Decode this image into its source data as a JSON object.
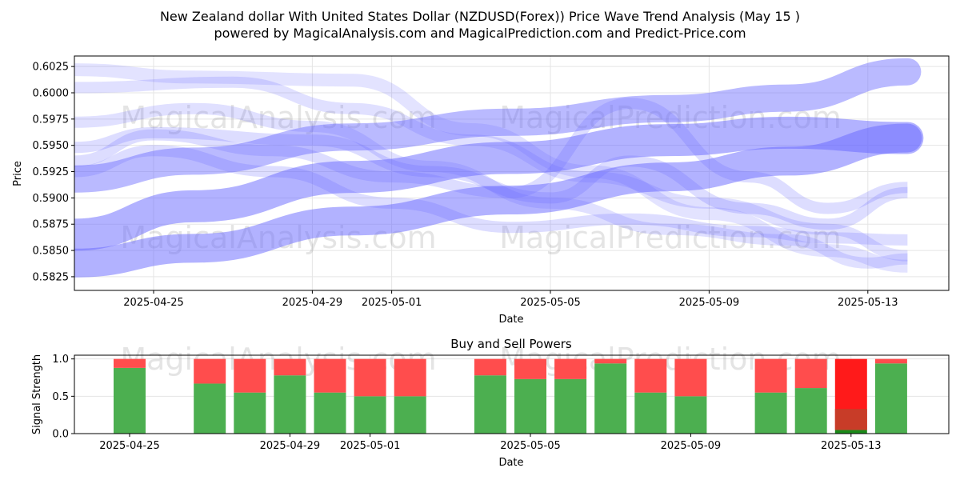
{
  "title_line1": "New Zealand dollar With United States Dollar (NZDUSD(Forex)) Price Wave Trend Analysis (May 15 )",
  "title_line2": "powered by MagicalAnalysis.com and MagicalPrediction.com and Predict-Price.com",
  "watermarks": [
    "MagicalAnalysis.com",
    "MagicalPrediction.com"
  ],
  "colors": {
    "band": "#6666ff",
    "buy": "#4caf50",
    "sell": "#ff4d4d",
    "sell_strong": "#ff1a1a",
    "buy_dim": "#1a8a1a",
    "mid": "#c83c28"
  },
  "chart_data": [
    {
      "type": "area",
      "xlabel": "Date",
      "ylabel": "Price",
      "ylim": [
        0.5812,
        0.6035
      ],
      "x_range": [
        "2025-04-23",
        "2025-05-15"
      ],
      "yticks": [
        0.5825,
        0.585,
        0.5875,
        0.59,
        0.5925,
        0.595,
        0.5975,
        0.6,
        0.6025
      ],
      "ytick_labels": [
        "0.5825",
        "0.5850",
        "0.5875",
        "0.5900",
        "0.5925",
        "0.5950",
        "0.5975",
        "0.6000",
        "0.6025"
      ],
      "xticks": [
        "2025-04-25",
        "2025-04-29",
        "2025-05-01",
        "2025-05-05",
        "2025-05-09",
        "2025-05-13"
      ],
      "grid": true,
      "series": [
        {
          "dates": [
            "2025-04-23",
            "2025-04-26",
            "2025-04-30",
            "2025-05-04",
            "2025-05-08",
            "2025-05-11",
            "2025-05-14"
          ],
          "values": [
            0.5918,
            0.5935,
            0.5958,
            0.5972,
            0.5985,
            0.5995,
            0.602
          ],
          "width": 34,
          "opacity": 0.45
        },
        {
          "dates": [
            "2025-04-23",
            "2025-04-26",
            "2025-04-30",
            "2025-05-04",
            "2025-05-08",
            "2025-05-11",
            "2025-05-14"
          ],
          "values": [
            0.5865,
            0.5892,
            0.592,
            0.5938,
            0.5955,
            0.5962,
            0.5957
          ],
          "width": 40,
          "opacity": 0.5
        },
        {
          "dates": [
            "2025-04-23",
            "2025-04-26",
            "2025-04-30",
            "2025-05-04",
            "2025-05-08",
            "2025-05-11",
            "2025-05-14"
          ],
          "values": [
            0.5838,
            0.5852,
            0.5878,
            0.5898,
            0.592,
            0.5935,
            0.5957
          ],
          "width": 36,
          "opacity": 0.5
        },
        {
          "dates": [
            "2025-04-23",
            "2025-04-25",
            "2025-04-29",
            "2025-05-02",
            "2025-05-05",
            "2025-05-07",
            "2025-05-10",
            "2025-05-12",
            "2025-05-14"
          ],
          "values": [
            0.5948,
            0.5962,
            0.5955,
            0.5925,
            0.59,
            0.5935,
            0.589,
            0.5875,
            0.5905
          ],
          "width": 14,
          "opacity": 0.22
        },
        {
          "dates": [
            "2025-04-23",
            "2025-04-25",
            "2025-04-28",
            "2025-05-01",
            "2025-05-04",
            "2025-05-07",
            "2025-05-10",
            "2025-05-12",
            "2025-05-14"
          ],
          "values": [
            0.5935,
            0.596,
            0.5945,
            0.592,
            0.5905,
            0.599,
            0.592,
            0.589,
            0.591
          ],
          "width": 14,
          "opacity": 0.22
        },
        {
          "dates": [
            "2025-04-23",
            "2025-04-26",
            "2025-04-29",
            "2025-05-02",
            "2025-05-05",
            "2025-05-08",
            "2025-05-11",
            "2025-05-13",
            "2025-05-14"
          ],
          "values": [
            0.5972,
            0.5985,
            0.5968,
            0.593,
            0.5895,
            0.587,
            0.586,
            0.5838,
            0.5842
          ],
          "width": 14,
          "opacity": 0.2
        },
        {
          "dates": [
            "2025-04-23",
            "2025-04-26",
            "2025-04-30",
            "2025-05-03",
            "2025-05-06",
            "2025-05-09",
            "2025-05-12",
            "2025-05-14"
          ],
          "values": [
            0.6022,
            0.6015,
            0.6012,
            0.5965,
            0.5925,
            0.5885,
            0.585,
            0.5835
          ],
          "width": 16,
          "opacity": 0.18
        },
        {
          "dates": [
            "2025-04-23",
            "2025-04-27",
            "2025-04-30",
            "2025-05-03",
            "2025-05-06",
            "2025-05-09",
            "2025-05-12",
            "2025-05-14"
          ],
          "values": [
            0.6005,
            0.601,
            0.5985,
            0.5955,
            0.592,
            0.5895,
            0.587,
            0.5845
          ],
          "width": 14,
          "opacity": 0.2
        },
        {
          "dates": [
            "2025-04-23",
            "2025-04-25",
            "2025-04-28",
            "2025-05-01",
            "2025-05-04",
            "2025-05-07",
            "2025-05-10",
            "2025-05-12",
            "2025-05-14"
          ],
          "values": [
            0.5925,
            0.5945,
            0.5925,
            0.5895,
            0.5872,
            0.588,
            0.5868,
            0.5862,
            0.586
          ],
          "width": 14,
          "opacity": 0.22
        }
      ]
    },
    {
      "type": "bar",
      "title": "Buy and Sell Powers",
      "xlabel": "Date",
      "ylabel": "Signal Strength",
      "ylim": [
        0,
        1.05
      ],
      "yticks": [
        0.0,
        0.5,
        1.0
      ],
      "ytick_labels": [
        "0.0",
        "0.5",
        "1.0"
      ],
      "xticks": [
        "2025-04-25",
        "2025-04-29",
        "2025-05-01",
        "2025-05-05",
        "2025-05-09",
        "2025-05-13"
      ],
      "categories": [
        "2025-04-25",
        "2025-04-27",
        "2025-04-28",
        "2025-04-29",
        "2025-04-30",
        "2025-05-01",
        "2025-05-02",
        "2025-05-04",
        "2025-05-05",
        "2025-05-06",
        "2025-05-07",
        "2025-05-08",
        "2025-05-09",
        "2025-05-11",
        "2025-05-12",
        "2025-05-13",
        "2025-05-14"
      ],
      "series": [
        {
          "name": "buy",
          "values": [
            0.88,
            0.67,
            0.55,
            0.78,
            0.55,
            0.5,
            0.5,
            0.78,
            0.73,
            0.73,
            0.94,
            0.55,
            0.5,
            0.55,
            0.61,
            0.05,
            0.94
          ]
        },
        {
          "name": "sell",
          "values": [
            0.12,
            0.33,
            0.45,
            0.22,
            0.45,
            0.5,
            0.5,
            0.22,
            0.27,
            0.27,
            0.06,
            0.45,
            0.5,
            0.45,
            0.39,
            0.95,
            0.06
          ]
        }
      ]
    }
  ]
}
